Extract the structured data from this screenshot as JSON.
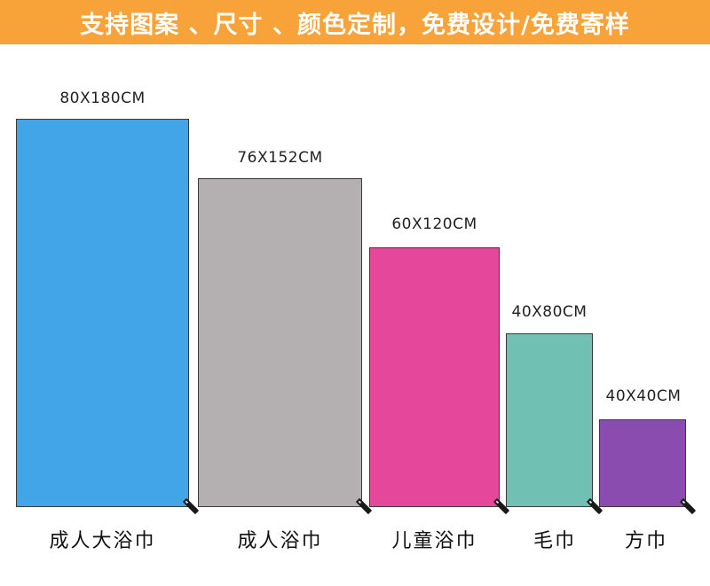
{
  "banner": {
    "text": "支持图案 、尺寸 、颜色定制，免费设计/免费寄样",
    "color": "#f8a23a"
  },
  "products": [
    {
      "size": "80X180CM",
      "name": "成人大浴巾",
      "color": "#42a5e8"
    },
    {
      "size": "76X152CM",
      "name": "成人浴巾",
      "color": "#b4b0b1"
    },
    {
      "size": "60X120CM",
      "name": "儿童浴巾",
      "color": "#e5489a"
    },
    {
      "size": "40X80CM",
      "name": "毛巾",
      "color": "#70c1b3"
    },
    {
      "size": "40X40CM",
      "name": "方巾",
      "color": "#8a4caf"
    }
  ]
}
